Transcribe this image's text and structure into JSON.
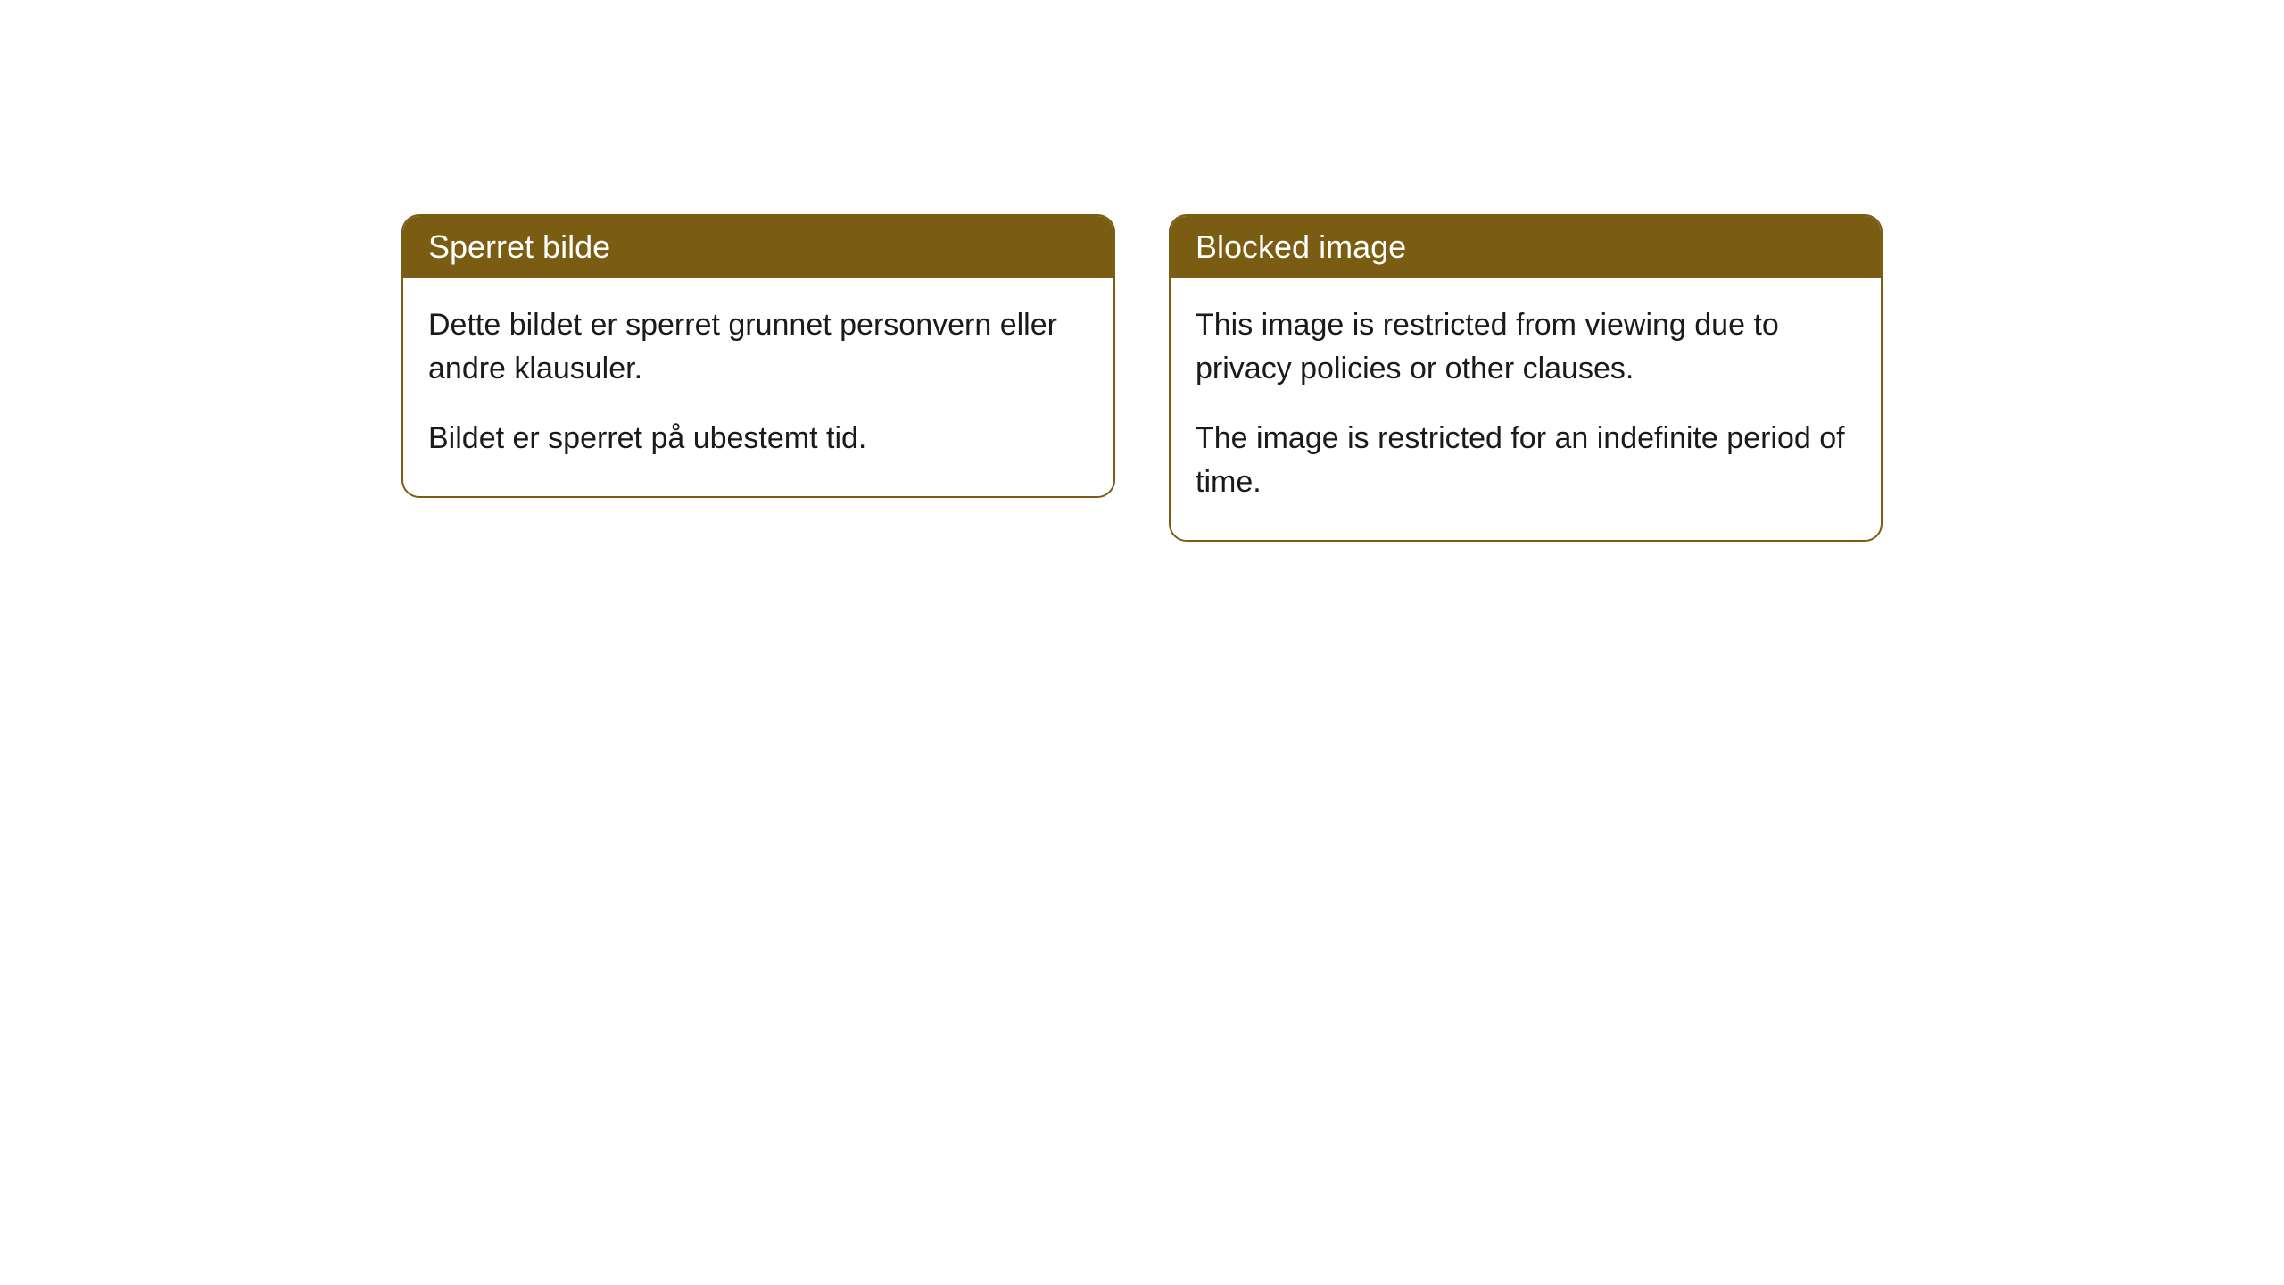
{
  "cards": [
    {
      "title": "Sperret bilde",
      "paragraph1": "Dette bildet er sperret grunnet personvern eller andre klausuler.",
      "paragraph2": "Bildet er sperret på ubestemt tid."
    },
    {
      "title": "Blocked image",
      "paragraph1": "This image is restricted from viewing due to privacy policies or other clauses.",
      "paragraph2": "The image is restricted for an indefinite period of time."
    }
  ],
  "styling": {
    "header_background": "#7a5d12",
    "header_text_color": "#ffffff",
    "border_color": "#7a5d12",
    "body_background": "#ffffff",
    "body_text_color": "#1a1a1a",
    "border_radius": 20,
    "header_fontsize": 36,
    "body_fontsize": 34
  }
}
